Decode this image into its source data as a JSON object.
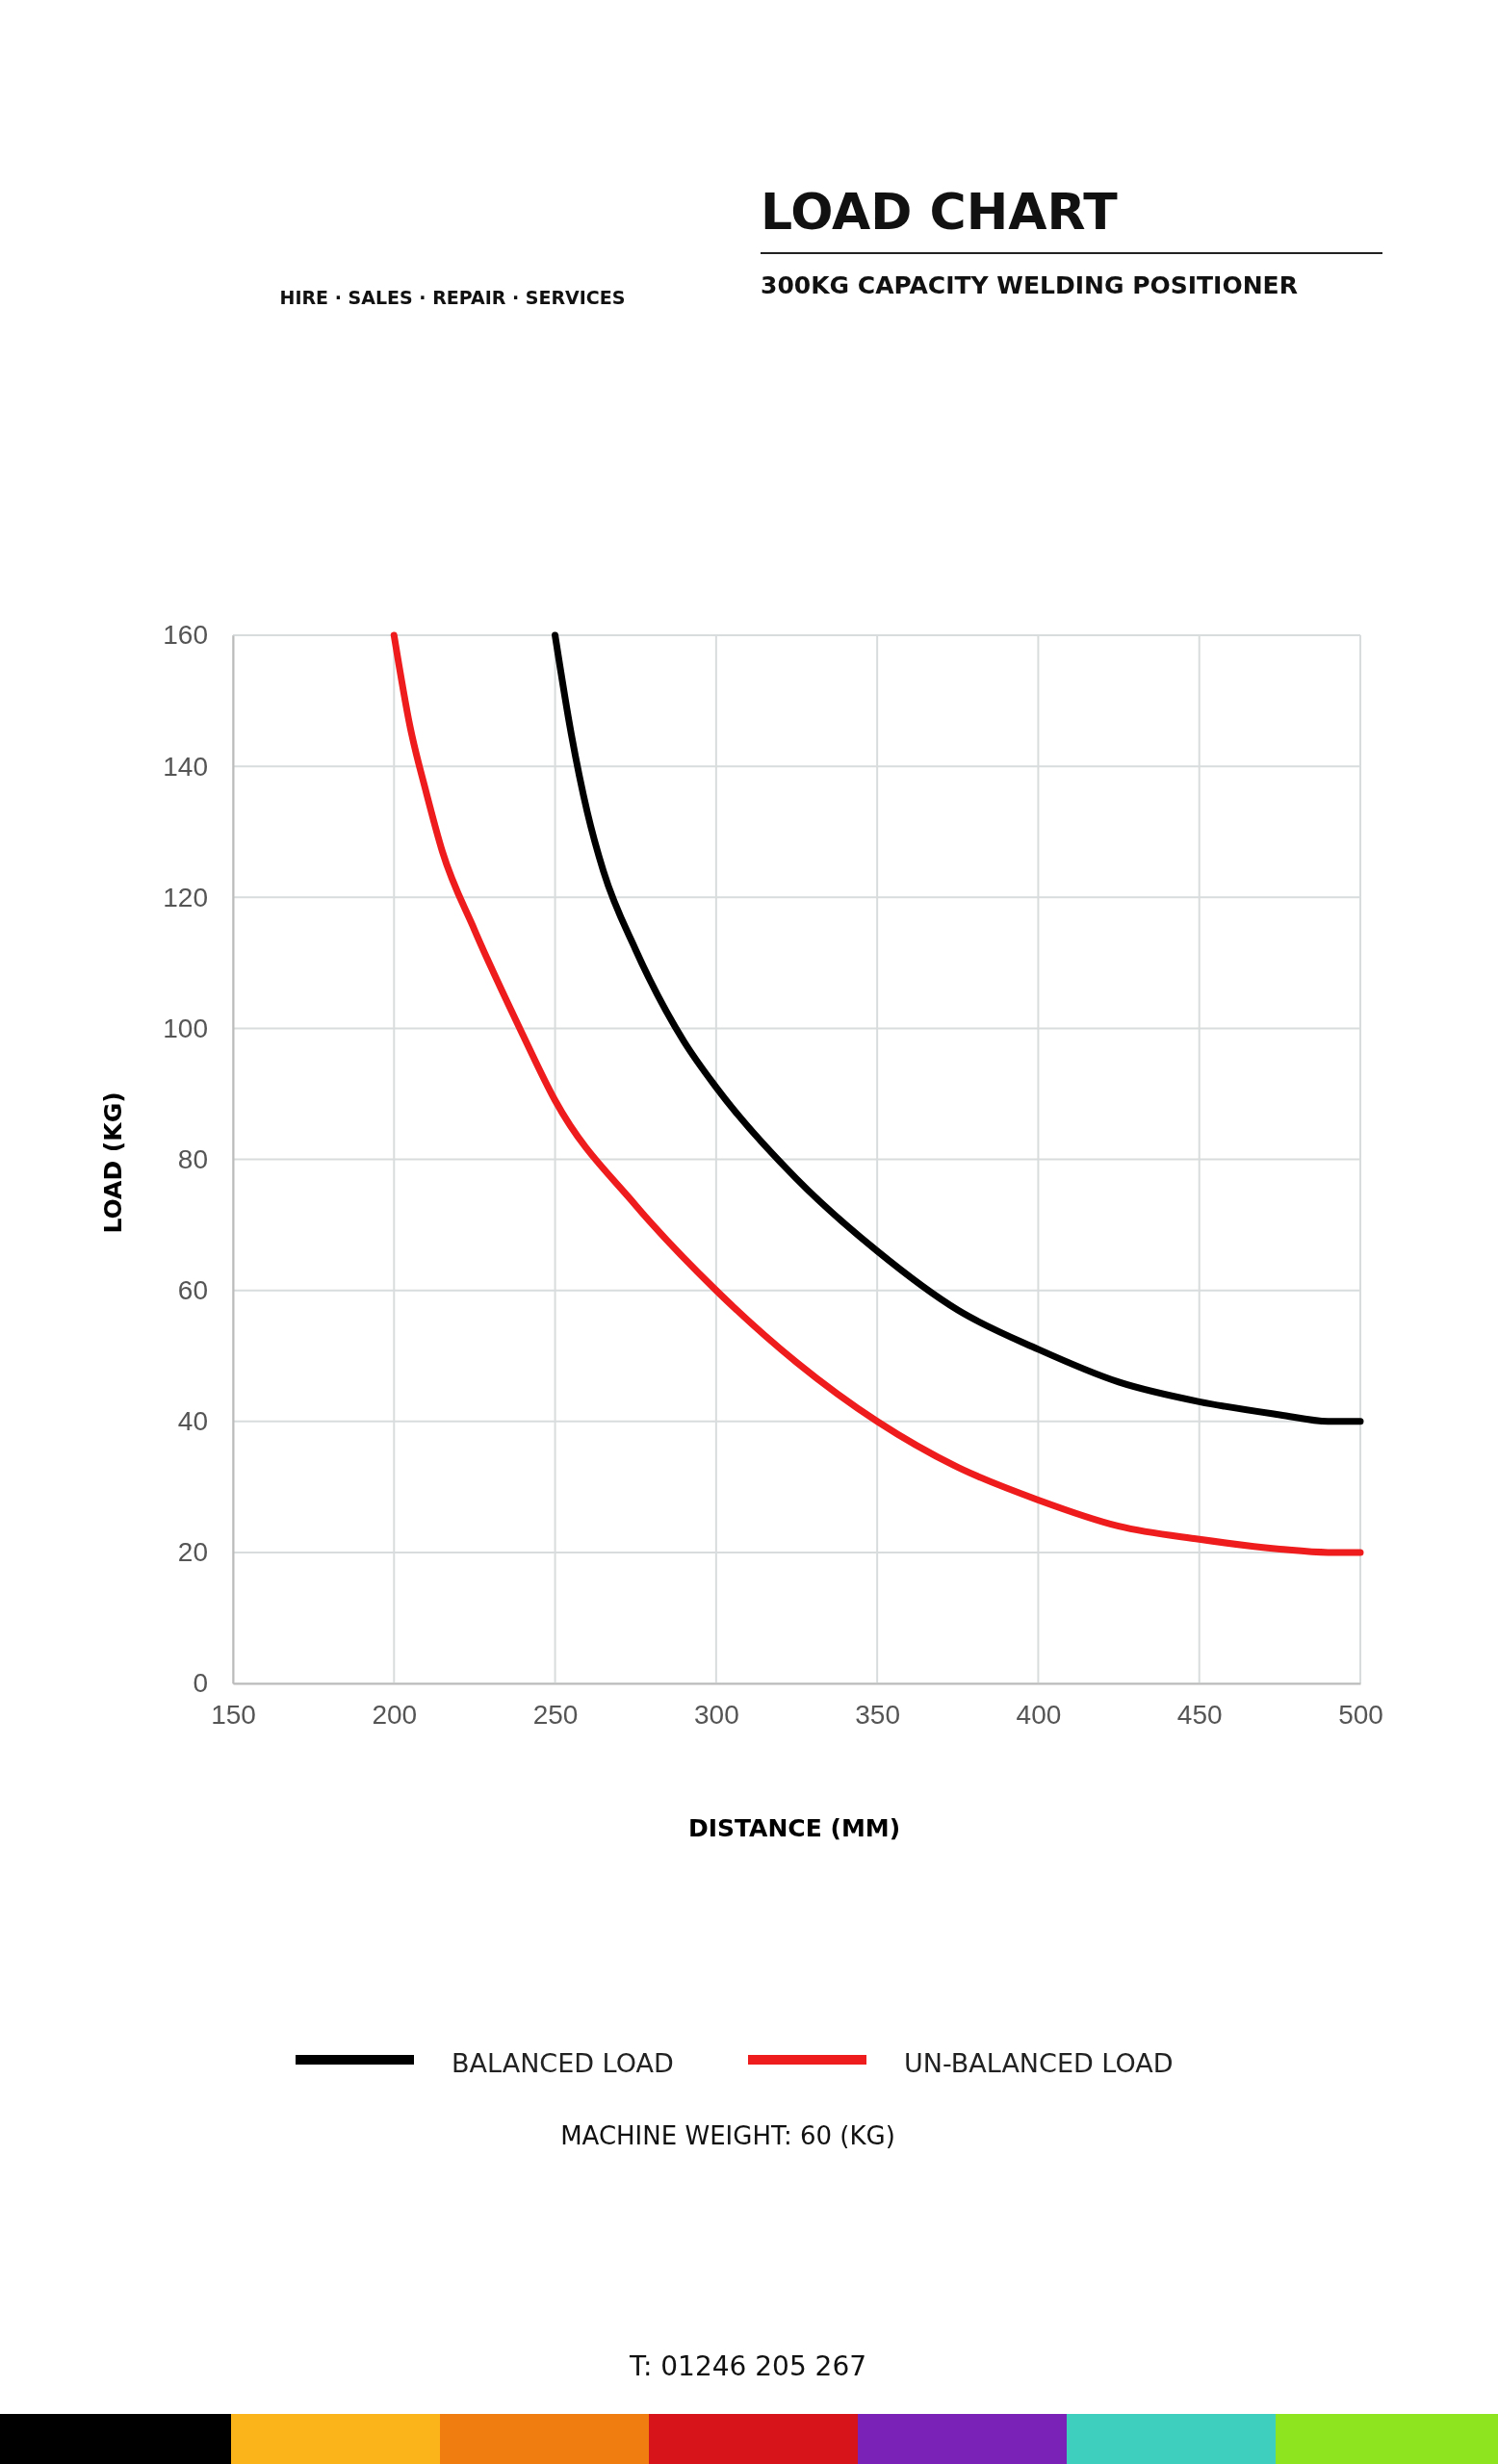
{
  "chart_data": {
    "type": "line",
    "title": "LOAD CHART",
    "subtitle": "300KG CAPACITY WELDING POSITIONER",
    "xlabel": "DISTANCE (MM)",
    "ylabel": "LOAD (KG)",
    "xlim": [
      150,
      500
    ],
    "xticks": [
      150,
      200,
      250,
      300,
      350,
      400,
      450,
      500
    ],
    "ylim": [
      0,
      160
    ],
    "yticks": [
      0,
      20,
      40,
      60,
      80,
      100,
      120,
      140,
      160
    ],
    "grid": true,
    "legend": "bottom",
    "series": [
      {
        "name": "BALANCED LOAD",
        "color": "#000000",
        "x": [
          250,
          255,
          260,
          265,
          275,
          290,
          300,
          325,
          350,
          375,
          400,
          425,
          450,
          475,
          490,
          500
        ],
        "values": [
          160,
          145,
          133,
          124,
          112,
          98,
          91,
          77,
          66,
          57,
          51,
          46,
          43,
          41,
          40,
          40
        ]
      },
      {
        "name": "UN-BALANCED LOAD",
        "color": "#ee1c1c",
        "x": [
          200,
          205,
          210,
          215,
          225,
          240,
          250,
          275,
          300,
          325,
          350,
          375,
          400,
          425,
          450,
          475,
          490,
          500
        ],
        "values": [
          160,
          146,
          136,
          127,
          115,
          99,
          89,
          73,
          60,
          49,
          40,
          33,
          28,
          24,
          22,
          20.5,
          20,
          20
        ]
      }
    ],
    "annotations": [
      "MACHINE WEIGHT:  60 (KG)",
      "HIRE · SALES · REPAIR · SERVICES",
      "T: 01246 205 267"
    ]
  }
}
